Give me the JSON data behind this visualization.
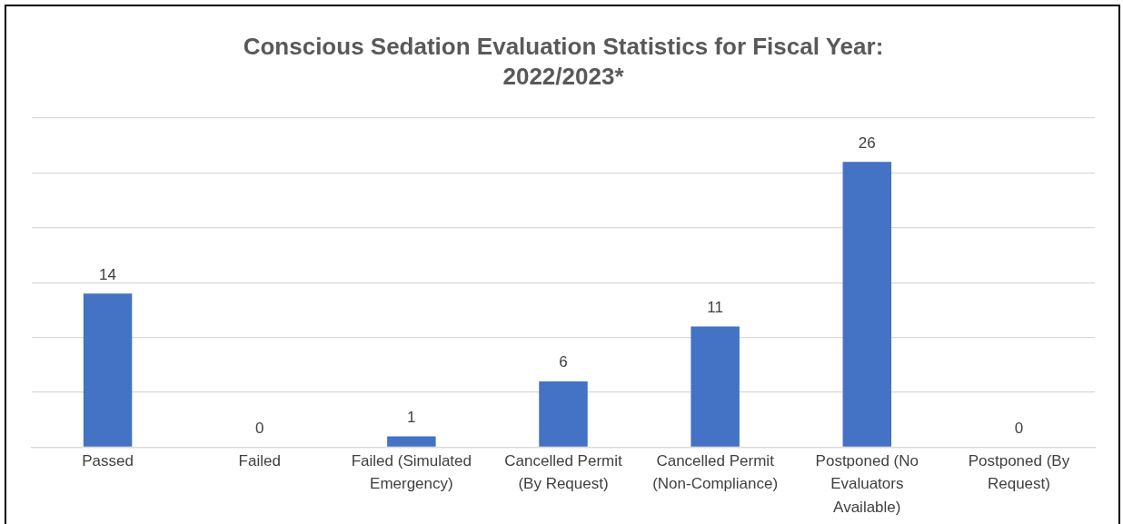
{
  "chart_data": {
    "type": "bar",
    "title": "Conscious Sedation Evaluation Statistics for Fiscal Year: 2022/2023*",
    "categories": [
      "Passed",
      "Failed",
      "Failed (Simulated Emergency)",
      "Cancelled Permit (By Request)",
      "Cancelled Permit (Non-Compliance)",
      "Postponed (No Evaluators Available)",
      "Postponed (By Request)"
    ],
    "values": [
      14,
      0,
      1,
      6,
      11,
      26,
      0
    ],
    "color": "#4472c4",
    "ylim": [
      0,
      30
    ],
    "yticks": [
      0,
      5,
      10,
      15,
      20,
      25,
      30
    ],
    "grid": "y",
    "tick_labels": "x",
    "data_labels": true,
    "legend": false
  }
}
